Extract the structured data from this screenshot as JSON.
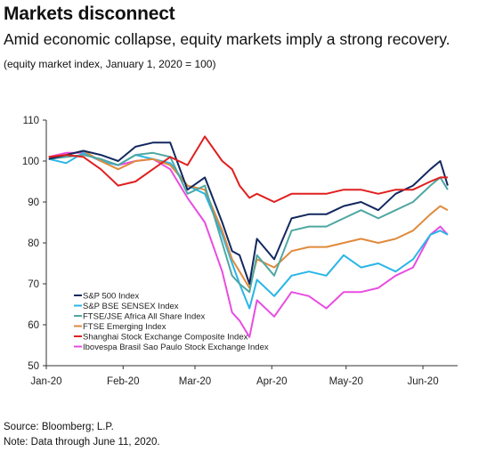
{
  "header": {
    "title": "Markets disconnect",
    "subtitle": "Amid economic collapse, equity markets imply a strong recovery.",
    "units": "(equity market index, January 1, 2020 = 100)"
  },
  "footer": {
    "source": "Source: Bloomberg; L.P.",
    "note": "Note: Data through June 11, 2020."
  },
  "chart_data": {
    "type": "line",
    "title": "Markets disconnect",
    "ylim": [
      50,
      110
    ],
    "yticks": [
      50,
      60,
      70,
      80,
      90,
      100,
      110
    ],
    "xlim": [
      "2020-01-01",
      "2020-06-15"
    ],
    "xticks": [
      {
        "date": "2020-01-01",
        "label": "Jan-20"
      },
      {
        "date": "2020-02-01",
        "label": "Feb-20"
      },
      {
        "date": "2020-03-01",
        "label": "Mar-20"
      },
      {
        "date": "2020-04-01",
        "label": "Apr-20"
      },
      {
        "date": "2020-05-01",
        "label": "May-20"
      },
      {
        "date": "2020-06-01",
        "label": "Jun-20"
      }
    ],
    "grid": false,
    "legend_position": "bottom-left",
    "x": [
      "2020-01-02",
      "2020-01-09",
      "2020-01-16",
      "2020-01-23",
      "2020-01-30",
      "2020-02-06",
      "2020-02-13",
      "2020-02-20",
      "2020-02-27",
      "2020-03-05",
      "2020-03-12",
      "2020-03-16",
      "2020-03-19",
      "2020-03-23",
      "2020-03-26",
      "2020-04-02",
      "2020-04-09",
      "2020-04-16",
      "2020-04-23",
      "2020-04-30",
      "2020-05-07",
      "2020-05-14",
      "2020-05-21",
      "2020-05-28",
      "2020-06-04",
      "2020-06-08",
      "2020-06-11"
    ],
    "series": [
      {
        "name": "S&P 500 Index",
        "color": "#12285f",
        "values": [
          100.5,
          101.5,
          102.5,
          101.5,
          100,
          103.5,
          104.5,
          104.5,
          93,
          96,
          85,
          78,
          77,
          70,
          81,
          76,
          86,
          87,
          87,
          89,
          90,
          88,
          92,
          94,
          98,
          100,
          94
        ]
      },
      {
        "name": "S&P BSE SENSEX Index",
        "color": "#29b6e6",
        "values": [
          100.5,
          99.5,
          102,
          100,
          99,
          101.5,
          100.5,
          99.5,
          94,
          92,
          82,
          75,
          70,
          64,
          71,
          67,
          72,
          73,
          72,
          77,
          74,
          75,
          73,
          76,
          82,
          83,
          82
        ]
      },
      {
        "name": "FTSE/JSE Africa All Share Index",
        "color": "#4fa7a2",
        "values": [
          100.5,
          101,
          101.5,
          100.5,
          99,
          101.5,
          102,
          101,
          92,
          94,
          80,
          72,
          70,
          68,
          77,
          72,
          83,
          84,
          84,
          86,
          88,
          86,
          88,
          90,
          94,
          96,
          93
        ]
      },
      {
        "name": "FTSE Emerging Index",
        "color": "#e08a3c",
        "values": [
          101,
          101.5,
          102.5,
          100,
          98,
          100,
          100.5,
          99,
          94,
          93,
          83,
          76,
          73,
          69,
          76,
          74,
          78,
          79,
          79,
          80,
          81,
          80,
          81,
          83,
          87,
          89,
          88
        ]
      },
      {
        "name": "Shanghai Stock Exchange Composite Index",
        "color": "#e01f1f",
        "values": [
          101,
          101.5,
          101,
          98,
          94,
          95,
          98,
          101,
          99,
          106,
          100,
          98,
          94,
          91,
          92,
          90,
          92,
          92,
          92,
          93,
          93,
          92,
          93,
          93,
          95,
          96,
          96
        ]
      },
      {
        "name": "Ibovespa Brasil Sao Paulo Stock Exchange Index",
        "color": "#e84de0",
        "values": [
          101,
          102,
          102,
          100,
          99,
          100,
          100.5,
          98,
          91,
          85,
          73,
          63,
          61,
          57,
          66,
          62,
          68,
          67,
          64,
          68,
          68,
          69,
          72,
          74,
          82,
          84,
          82
        ]
      }
    ]
  }
}
